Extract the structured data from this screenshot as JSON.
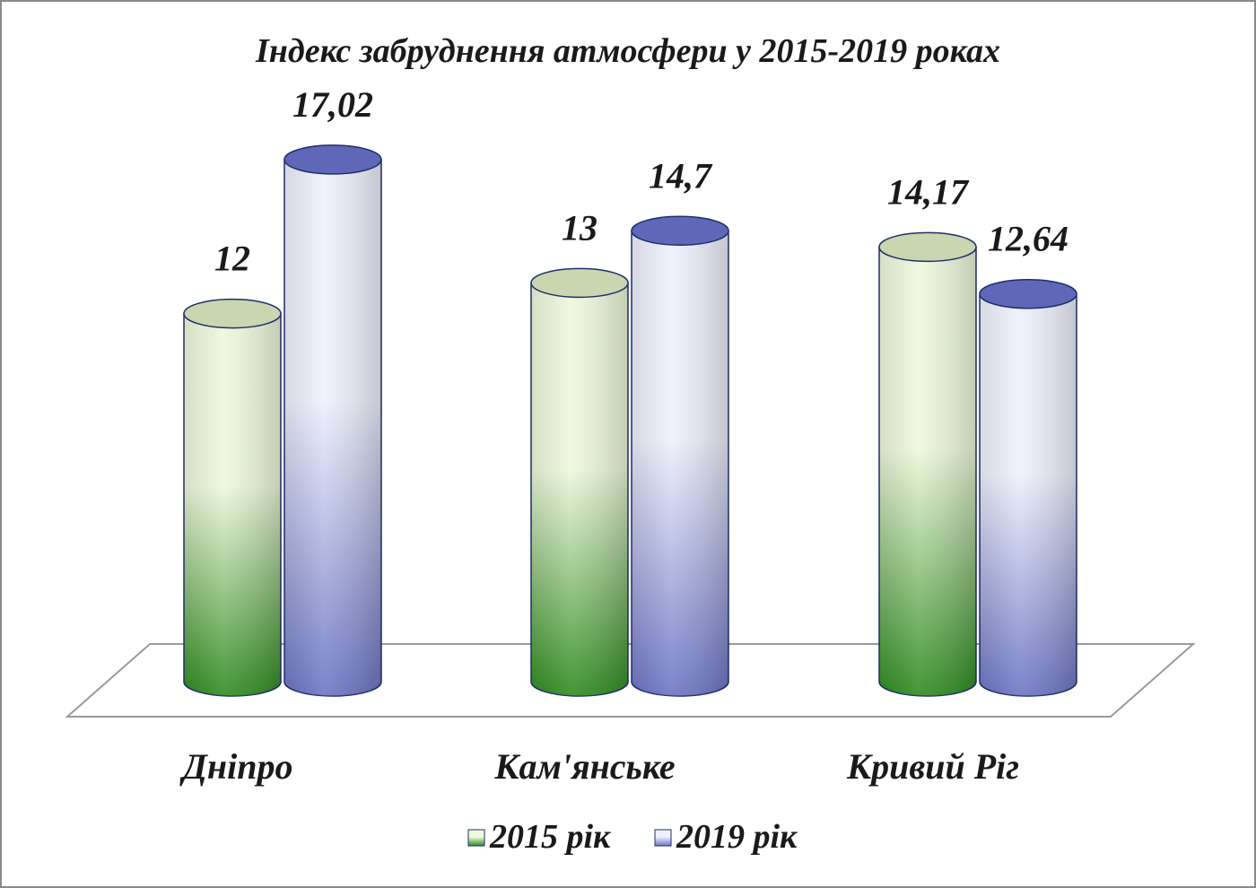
{
  "chart_data": {
    "type": "bar",
    "style": "3d-cylinder",
    "title": "Індекс забруднення атмосфери  у 2015-2019 роках",
    "categories": [
      "Дніпро",
      "Кам'янське",
      "Кривий Ріг"
    ],
    "series": [
      {
        "name": "2015 рік",
        "values": [
          12,
          13,
          14.17
        ],
        "labels": [
          "12",
          "13",
          "14,17"
        ],
        "color_dark": "#2e8b1f",
        "color_light": "#eef8dc",
        "top_color": "#c9d6b0"
      },
      {
        "name": "2019 рік",
        "values": [
          17.02,
          14.7,
          12.64
        ],
        "labels": [
          "17,02",
          "14,7",
          "12,64"
        ],
        "color_dark": "#6c74c4",
        "color_light": "#eef0fc",
        "top_color": "#5f68b8"
      }
    ],
    "ylim": [
      0,
      20
    ],
    "grid": false,
    "legend": "bottom",
    "outline_color": "#1f2f6e"
  }
}
